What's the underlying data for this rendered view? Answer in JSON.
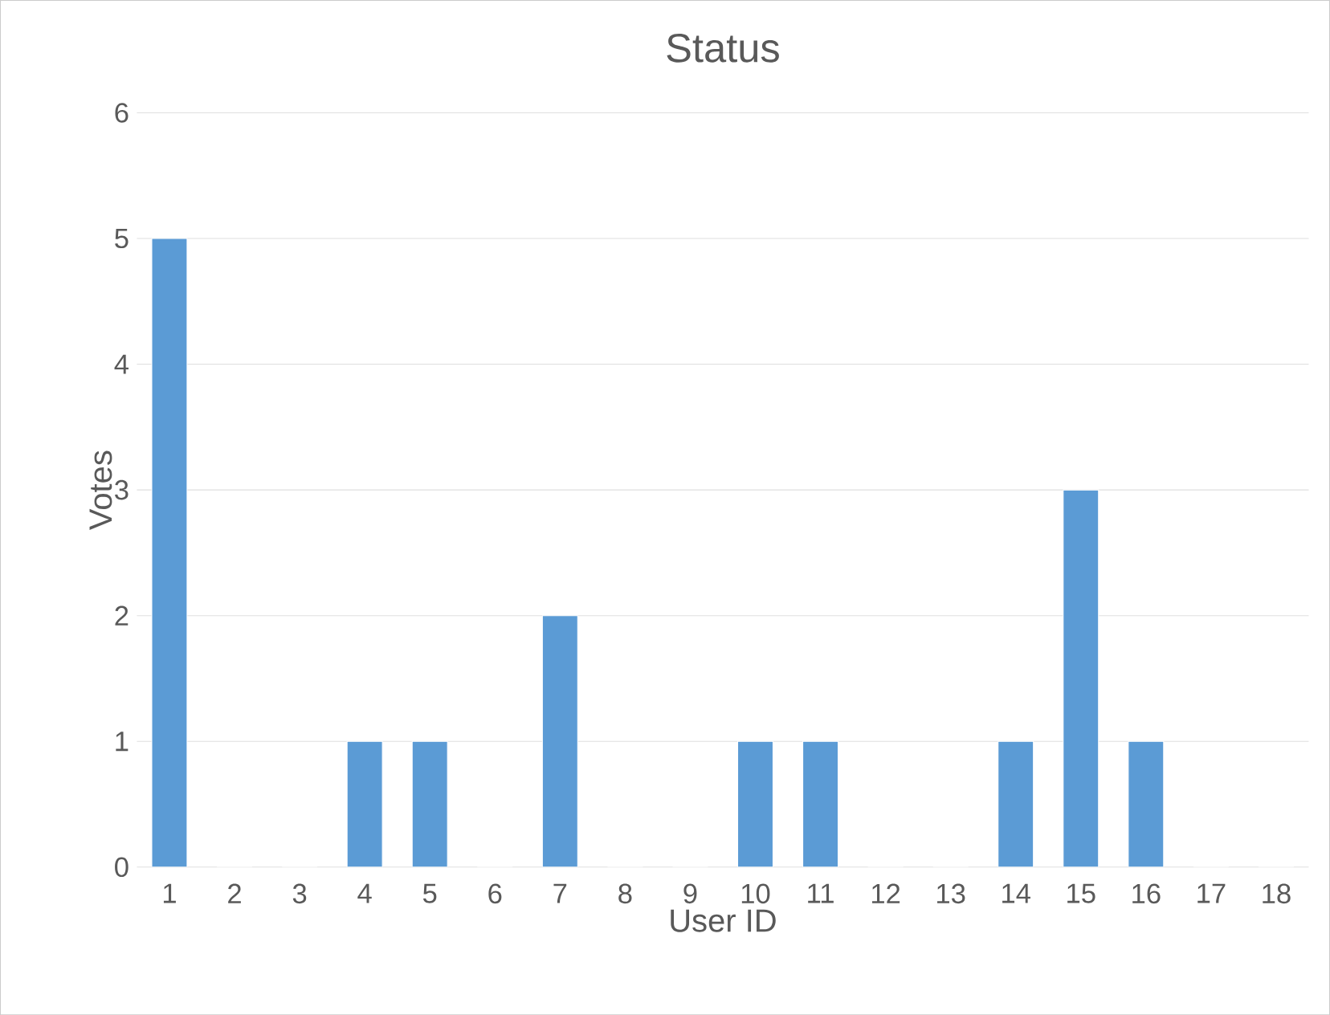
{
  "chart_data": {
    "type": "bar",
    "title": "Status",
    "xlabel": "User ID",
    "ylabel": "Votes",
    "categories": [
      "1",
      "2",
      "3",
      "4",
      "5",
      "6",
      "7",
      "8",
      "9",
      "10",
      "11",
      "12",
      "13",
      "14",
      "15",
      "16",
      "17",
      "18"
    ],
    "values": [
      5,
      0,
      0,
      1,
      1,
      0,
      2,
      0,
      0,
      1,
      1,
      0,
      0,
      1,
      3,
      1,
      0,
      0
    ],
    "color": "#5b9bd5",
    "ylim": [
      0,
      6
    ],
    "yticks": [
      0,
      1,
      2,
      3,
      4,
      5,
      6
    ],
    "grid": "y"
  }
}
